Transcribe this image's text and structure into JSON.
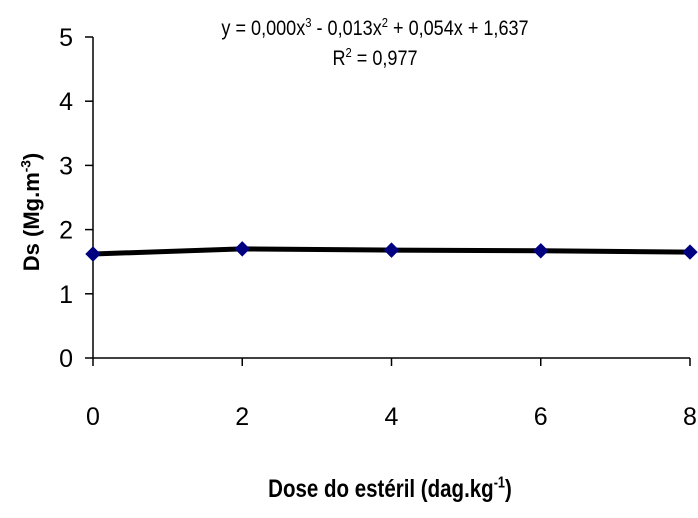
{
  "chart_data": {
    "type": "line",
    "equation_prefix": "y = 0,000x",
    "equation_sup1": "3",
    "equation_mid1": " - 0,013x",
    "equation_sup2": "2",
    "equation_suffix": " + 0,054x + 1,637",
    "r2_prefix": "R",
    "r2_sup": "2",
    "r2_suffix": " = 0,977",
    "xlabel_prefix": "Dose do estéril (dag.kg",
    "xlabel_sup": "-1",
    "xlabel_suffix": ")",
    "ylabel_prefix": "Ds (Mg.m",
    "ylabel_sup": "-3",
    "ylabel_suffix": ")",
    "xlim": [
      0,
      8
    ],
    "ylim": [
      0,
      5
    ],
    "x_ticks": [
      "0",
      "2",
      "4",
      "6",
      "8"
    ],
    "y_ticks": [
      "0",
      "1",
      "2",
      "3",
      "4",
      "5"
    ],
    "grid": false,
    "legend": "none",
    "series": [
      {
        "x": [
          0,
          2,
          4,
          6,
          8
        ],
        "values": [
          1.62,
          1.7,
          1.68,
          1.67,
          1.65
        ],
        "color": "#000080",
        "marker": "diamond"
      }
    ],
    "trendline": {
      "type": "polynomial",
      "order": 3,
      "coefficients": [
        0.0,
        -0.013,
        0.054,
        1.637
      ],
      "color": "#000000"
    }
  }
}
